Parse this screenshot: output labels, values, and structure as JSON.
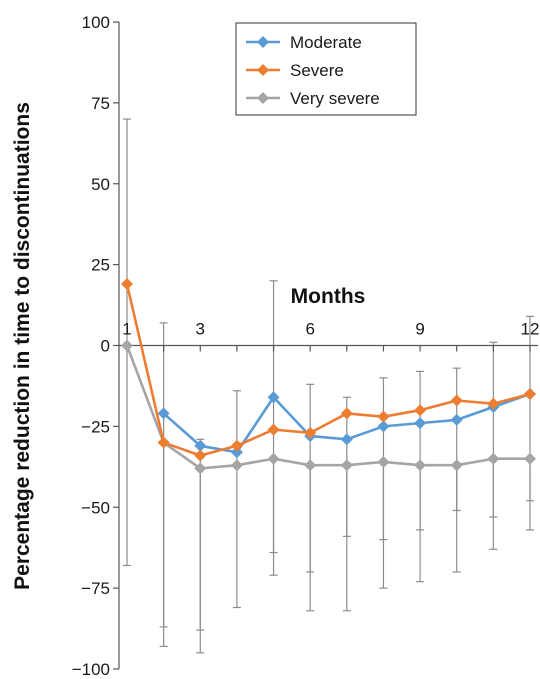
{
  "chart_data": {
    "type": "line",
    "xlabel": "Months",
    "ylabel": "Percentage reduction in time to discontinuations",
    "x": [
      1,
      2,
      3,
      4,
      5,
      6,
      7,
      8,
      9,
      10,
      11,
      12
    ],
    "x_ticks": [
      1,
      3,
      6,
      9,
      12
    ],
    "y_ticks": [
      100,
      75,
      50,
      25,
      0,
      -25,
      -50,
      -75,
      -100
    ],
    "ylim": [
      -100,
      100
    ],
    "xlim": [
      1,
      12
    ],
    "grid": false,
    "legend_position": "top",
    "series": [
      {
        "name": "Moderate",
        "color": "#5b9bd5",
        "marker": "diamond",
        "values": [
          null,
          -21,
          -31,
          -33,
          -16,
          -28,
          -29,
          -25,
          -24,
          -23,
          -19,
          -15
        ],
        "error_high": [
          null,
          7,
          -29,
          null,
          20,
          -12,
          -16,
          -10,
          -8,
          -7,
          1,
          9
        ],
        "error_low": [
          null,
          -93,
          -88,
          null,
          -64,
          -70,
          -59,
          -60,
          -57,
          -51,
          -53,
          -48
        ]
      },
      {
        "name": "Severe",
        "color": "#ed7d31",
        "marker": "diamond",
        "values": [
          19,
          -30,
          -34,
          -31,
          -26,
          -27,
          -21,
          -22,
          -20,
          -17,
          -18,
          -15
        ],
        "error_high": [
          null,
          null,
          null,
          null,
          null,
          null,
          null,
          null,
          null,
          null,
          null,
          null
        ],
        "error_low": [
          null,
          null,
          null,
          null,
          null,
          null,
          null,
          null,
          null,
          null,
          null,
          null
        ]
      },
      {
        "name": "Very severe",
        "color": "#a5a5a5",
        "marker": "diamond",
        "values": [
          0,
          -30,
          -38,
          -37,
          -35,
          -37,
          -37,
          -36,
          -37,
          -37,
          -35,
          -35
        ],
        "error_high": [
          70,
          null,
          null,
          -14,
          null,
          null,
          null,
          null,
          null,
          null,
          null,
          null
        ],
        "error_low": [
          -68,
          -87,
          -95,
          -81,
          -71,
          -82,
          -82,
          -75,
          -73,
          -70,
          -63,
          -57
        ]
      }
    ]
  }
}
